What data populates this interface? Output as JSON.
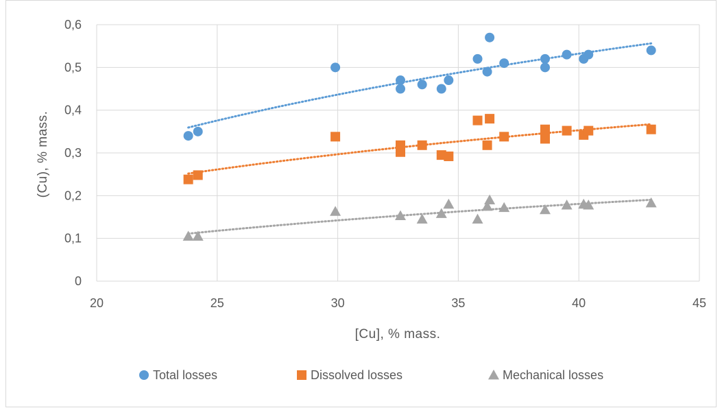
{
  "chart_data": {
    "type": "scatter",
    "title": "",
    "xlabel": "[Cu], % mass.",
    "ylabel": "(Cu), % mass.",
    "xlim": [
      20,
      45
    ],
    "ylim": [
      0,
      0.6
    ],
    "x_ticks": [
      20,
      25,
      30,
      35,
      40,
      45
    ],
    "y_ticks": [
      0,
      0.1,
      0.2,
      0.3,
      0.4,
      0.5,
      0.6
    ],
    "x_tick_labels": [
      "20",
      "25",
      "30",
      "35",
      "40",
      "45"
    ],
    "y_tick_labels": [
      "0",
      "0,1",
      "0,2",
      "0,3",
      "0,4",
      "0,5",
      "0,6"
    ],
    "grid": true,
    "legend_position": "bottom",
    "trendline": "logarithmic, dotted",
    "series": [
      {
        "name": "Total losses",
        "marker": "circle",
        "color": "#5b9bd5",
        "x": [
          23.8,
          24.2,
          29.9,
          32.6,
          32.6,
          33.5,
          34.3,
          34.6,
          35.8,
          36.2,
          36.3,
          36.9,
          38.6,
          38.6,
          39.5,
          40.2,
          40.4,
          43.0
        ],
        "y": [
          0.34,
          0.35,
          0.5,
          0.47,
          0.45,
          0.46,
          0.45,
          0.47,
          0.52,
          0.49,
          0.57,
          0.51,
          0.52,
          0.5,
          0.53,
          0.52,
          0.53,
          0.54
        ]
      },
      {
        "name": "Dissolved losses",
        "marker": "square",
        "color": "#ed7d31",
        "x": [
          23.8,
          24.2,
          29.9,
          32.6,
          32.6,
          33.5,
          34.3,
          34.6,
          35.8,
          36.2,
          36.3,
          36.9,
          38.6,
          38.6,
          39.5,
          40.2,
          40.4,
          43.0
        ],
        "y": [
          0.238,
          0.248,
          0.338,
          0.318,
          0.302,
          0.318,
          0.295,
          0.292,
          0.376,
          0.318,
          0.38,
          0.338,
          0.355,
          0.333,
          0.352,
          0.342,
          0.352,
          0.355
        ]
      },
      {
        "name": "Mechanical losses",
        "marker": "triangle",
        "color": "#a5a5a5",
        "x": [
          23.8,
          24.2,
          29.9,
          32.6,
          33.5,
          34.3,
          34.6,
          35.8,
          36.2,
          36.3,
          36.9,
          38.6,
          39.5,
          40.2,
          40.4,
          43.0
        ],
        "y": [
          0.105,
          0.105,
          0.163,
          0.153,
          0.145,
          0.158,
          0.18,
          0.145,
          0.175,
          0.19,
          0.172,
          0.167,
          0.178,
          0.18,
          0.178,
          0.183
        ]
      }
    ]
  }
}
